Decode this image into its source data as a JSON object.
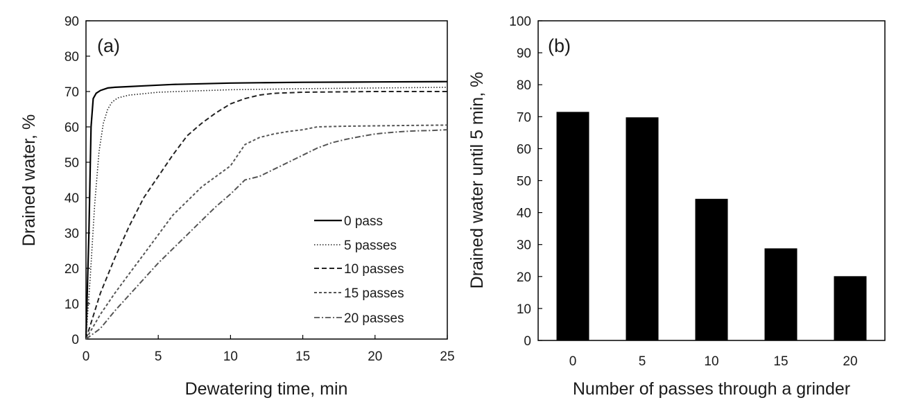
{
  "chart_data": [
    {
      "panel": "(a)",
      "type": "line",
      "title": "",
      "xlabel": "Dewatering time, min",
      "ylabel": "Drained water, %",
      "xlim": [
        0,
        25
      ],
      "ylim": [
        0,
        90
      ],
      "xticks": [
        0,
        5,
        10,
        15,
        20,
        25
      ],
      "yticks": [
        0,
        10,
        20,
        30,
        40,
        50,
        60,
        70,
        80,
        90
      ],
      "legend_position": "bottom-right",
      "series": [
        {
          "name": "0 pass",
          "dash": "solid",
          "color": "#000000",
          "x": [
            0,
            0.2,
            0.35,
            0.5,
            0.7,
            1,
            1.5,
            2,
            3,
            4,
            5,
            6,
            8,
            10,
            12,
            15,
            20,
            25
          ],
          "y": [
            0,
            30,
            60,
            68,
            69.5,
            70.3,
            71,
            71.2,
            71.4,
            71.6,
            71.8,
            72,
            72.2,
            72.4,
            72.5,
            72.6,
            72.7,
            72.8
          ]
        },
        {
          "name": "5 passes",
          "dash": "dotted",
          "color": "#222222",
          "x": [
            0,
            0.3,
            0.6,
            0.9,
            1.2,
            1.5,
            1.8,
            2.2,
            3,
            4,
            5,
            7,
            10,
            15,
            20,
            25
          ],
          "y": [
            0,
            18,
            38,
            53,
            61,
            65,
            67,
            68.2,
            69,
            69.4,
            69.8,
            70.1,
            70.5,
            70.8,
            71,
            71.2
          ]
        },
        {
          "name": "10 passes",
          "dash": "dashed",
          "color": "#222222",
          "x": [
            0,
            1,
            2,
            3,
            4,
            5,
            6,
            7,
            8,
            9,
            10,
            11,
            12,
            13,
            15,
            20,
            25
          ],
          "y": [
            0,
            13,
            23,
            32,
            40,
            46,
            52,
            57.5,
            61,
            64,
            66.5,
            68,
            69,
            69.5,
            69.8,
            70,
            70
          ]
        },
        {
          "name": "15 passes",
          "dash": "short-dash",
          "color": "#555555",
          "x": [
            0,
            1,
            2,
            3,
            4,
            5,
            6,
            7,
            8,
            9,
            10,
            11,
            12,
            13,
            14,
            15,
            16,
            18,
            20,
            22,
            25
          ],
          "y": [
            0,
            7,
            13,
            18.5,
            24,
            29.5,
            35,
            39,
            43,
            46,
            49,
            55,
            57,
            58,
            58.7,
            59.2,
            60,
            60.2,
            60.3,
            60.4,
            60.5
          ]
        },
        {
          "name": "20 passes",
          "dash": "dash-dot",
          "color": "#555555",
          "x": [
            0,
            1,
            2,
            3,
            4,
            5,
            6,
            7,
            8,
            9,
            10,
            11,
            12,
            13,
            14,
            15,
            16,
            17,
            18,
            19,
            20,
            21,
            22,
            23,
            24,
            25
          ],
          "y": [
            0,
            3,
            8,
            12.5,
            17,
            21.5,
            25.5,
            29.5,
            33.5,
            37.5,
            41,
            45,
            46,
            48,
            50,
            52,
            54,
            55.5,
            56.5,
            57.3,
            58,
            58.4,
            58.7,
            58.9,
            59,
            59.2
          ]
        }
      ]
    },
    {
      "panel": "(b)",
      "type": "bar",
      "title": "",
      "xlabel": "Number of passes through a grinder",
      "ylabel": "Drained water until 5 min, %",
      "categories": [
        "0",
        "5",
        "10",
        "15",
        "20"
      ],
      "values": [
        71.5,
        69.8,
        44.3,
        28.8,
        20.1
      ],
      "ylim": [
        0,
        100
      ],
      "yticks": [
        0,
        10,
        20,
        30,
        40,
        50,
        60,
        70,
        80,
        90,
        100
      ],
      "bar_color": "#000000"
    }
  ]
}
